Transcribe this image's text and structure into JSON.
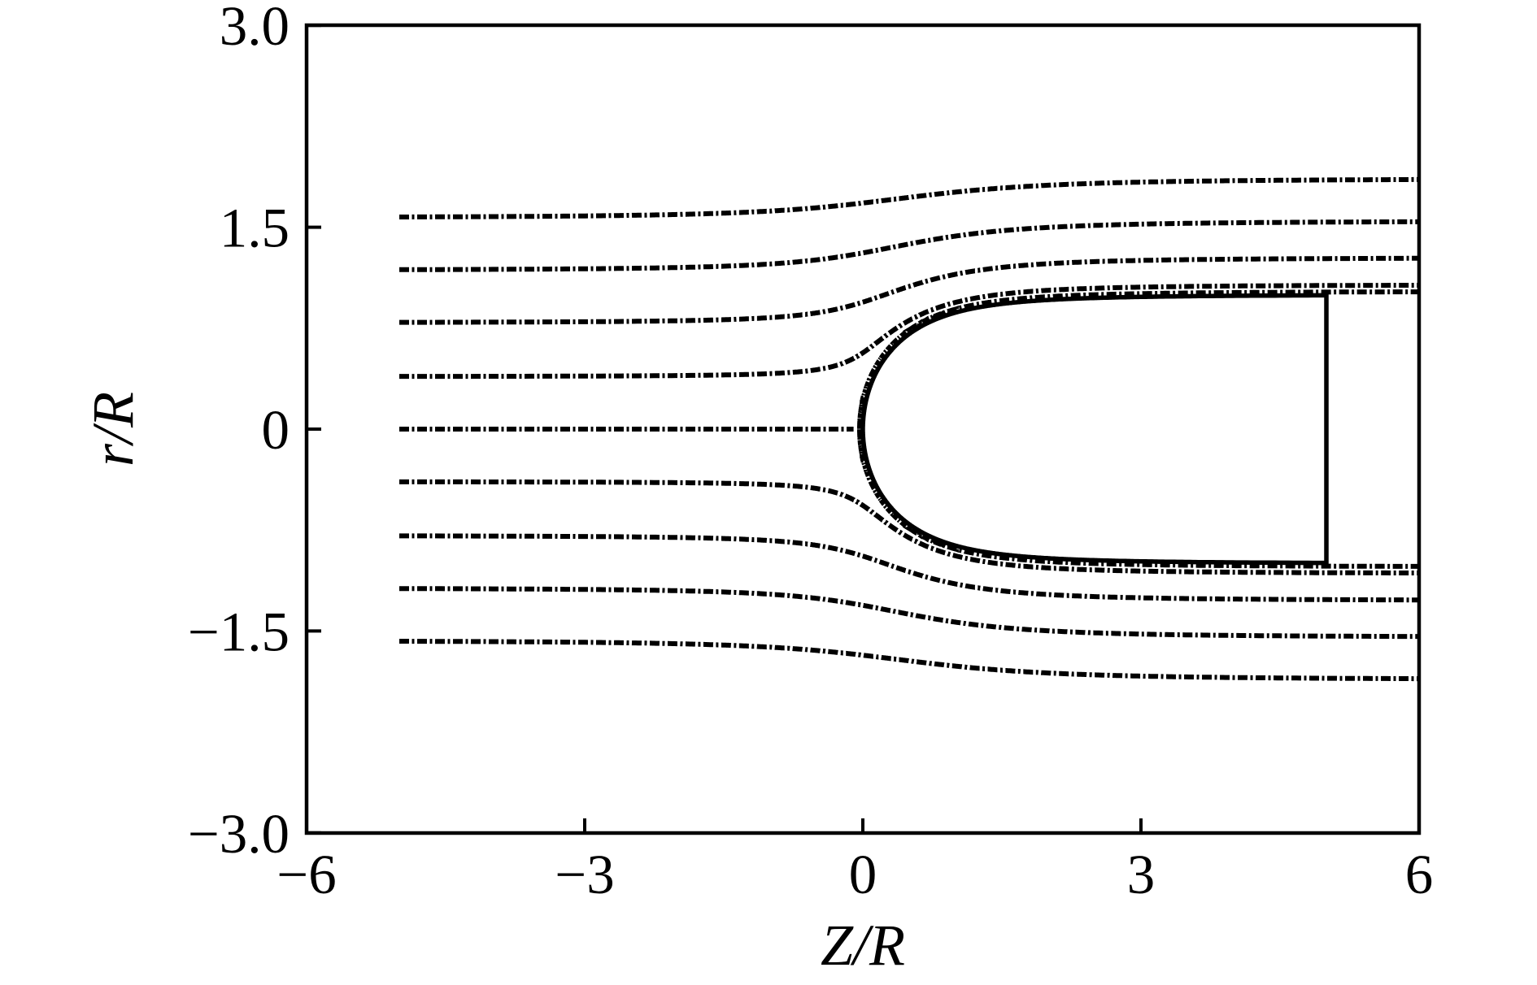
{
  "figure": {
    "background": "#ffffff",
    "ink_color": "#000000"
  },
  "chart_data": {
    "type": "line",
    "title": "",
    "subtitle": "",
    "xlabel": "Z/R",
    "ylabel": "r/R",
    "xlim": [
      -6,
      6
    ],
    "ylim": [
      -3.0,
      3.0
    ],
    "grid": false,
    "legend": null,
    "xticks": {
      "values": [
        -6,
        -3,
        0,
        3,
        6
      ],
      "labels": [
        "−6",
        "−3",
        "0",
        "3",
        "6"
      ]
    },
    "yticks": {
      "values": [
        3.0,
        1.5,
        0,
        -1.5,
        -3.0
      ],
      "labels": [
        "3.0",
        "1.5",
        "0",
        "−1.5",
        "−3.0"
      ]
    },
    "series": [
      {
        "name": "streamlines",
        "kind": "streamline-set",
        "linestyle": "dash-dot",
        "color": "#000000",
        "z_start": -5.0,
        "z_end": 6.0,
        "upstream_radii": [
          1.57,
          1.18,
          0.79,
          0.39,
          0.0,
          -0.39,
          -0.79,
          -1.18,
          -1.57
        ],
        "downstream_radii": [
          1.86,
          1.54,
          1.28,
          1.08,
          1.0,
          -1.08,
          -1.28,
          -1.54,
          -1.86
        ],
        "model": "axisymmetric half-body potential flow (r_out = sqrt(r_in^2 + 1))"
      },
      {
        "name": "half-body outline",
        "kind": "body",
        "linestyle": "solid",
        "color": "#000000",
        "nose_z": 0.0,
        "base_z": 5.0,
        "asymptotic_radius": 1.0,
        "base_radius": 0.99
      }
    ]
  }
}
